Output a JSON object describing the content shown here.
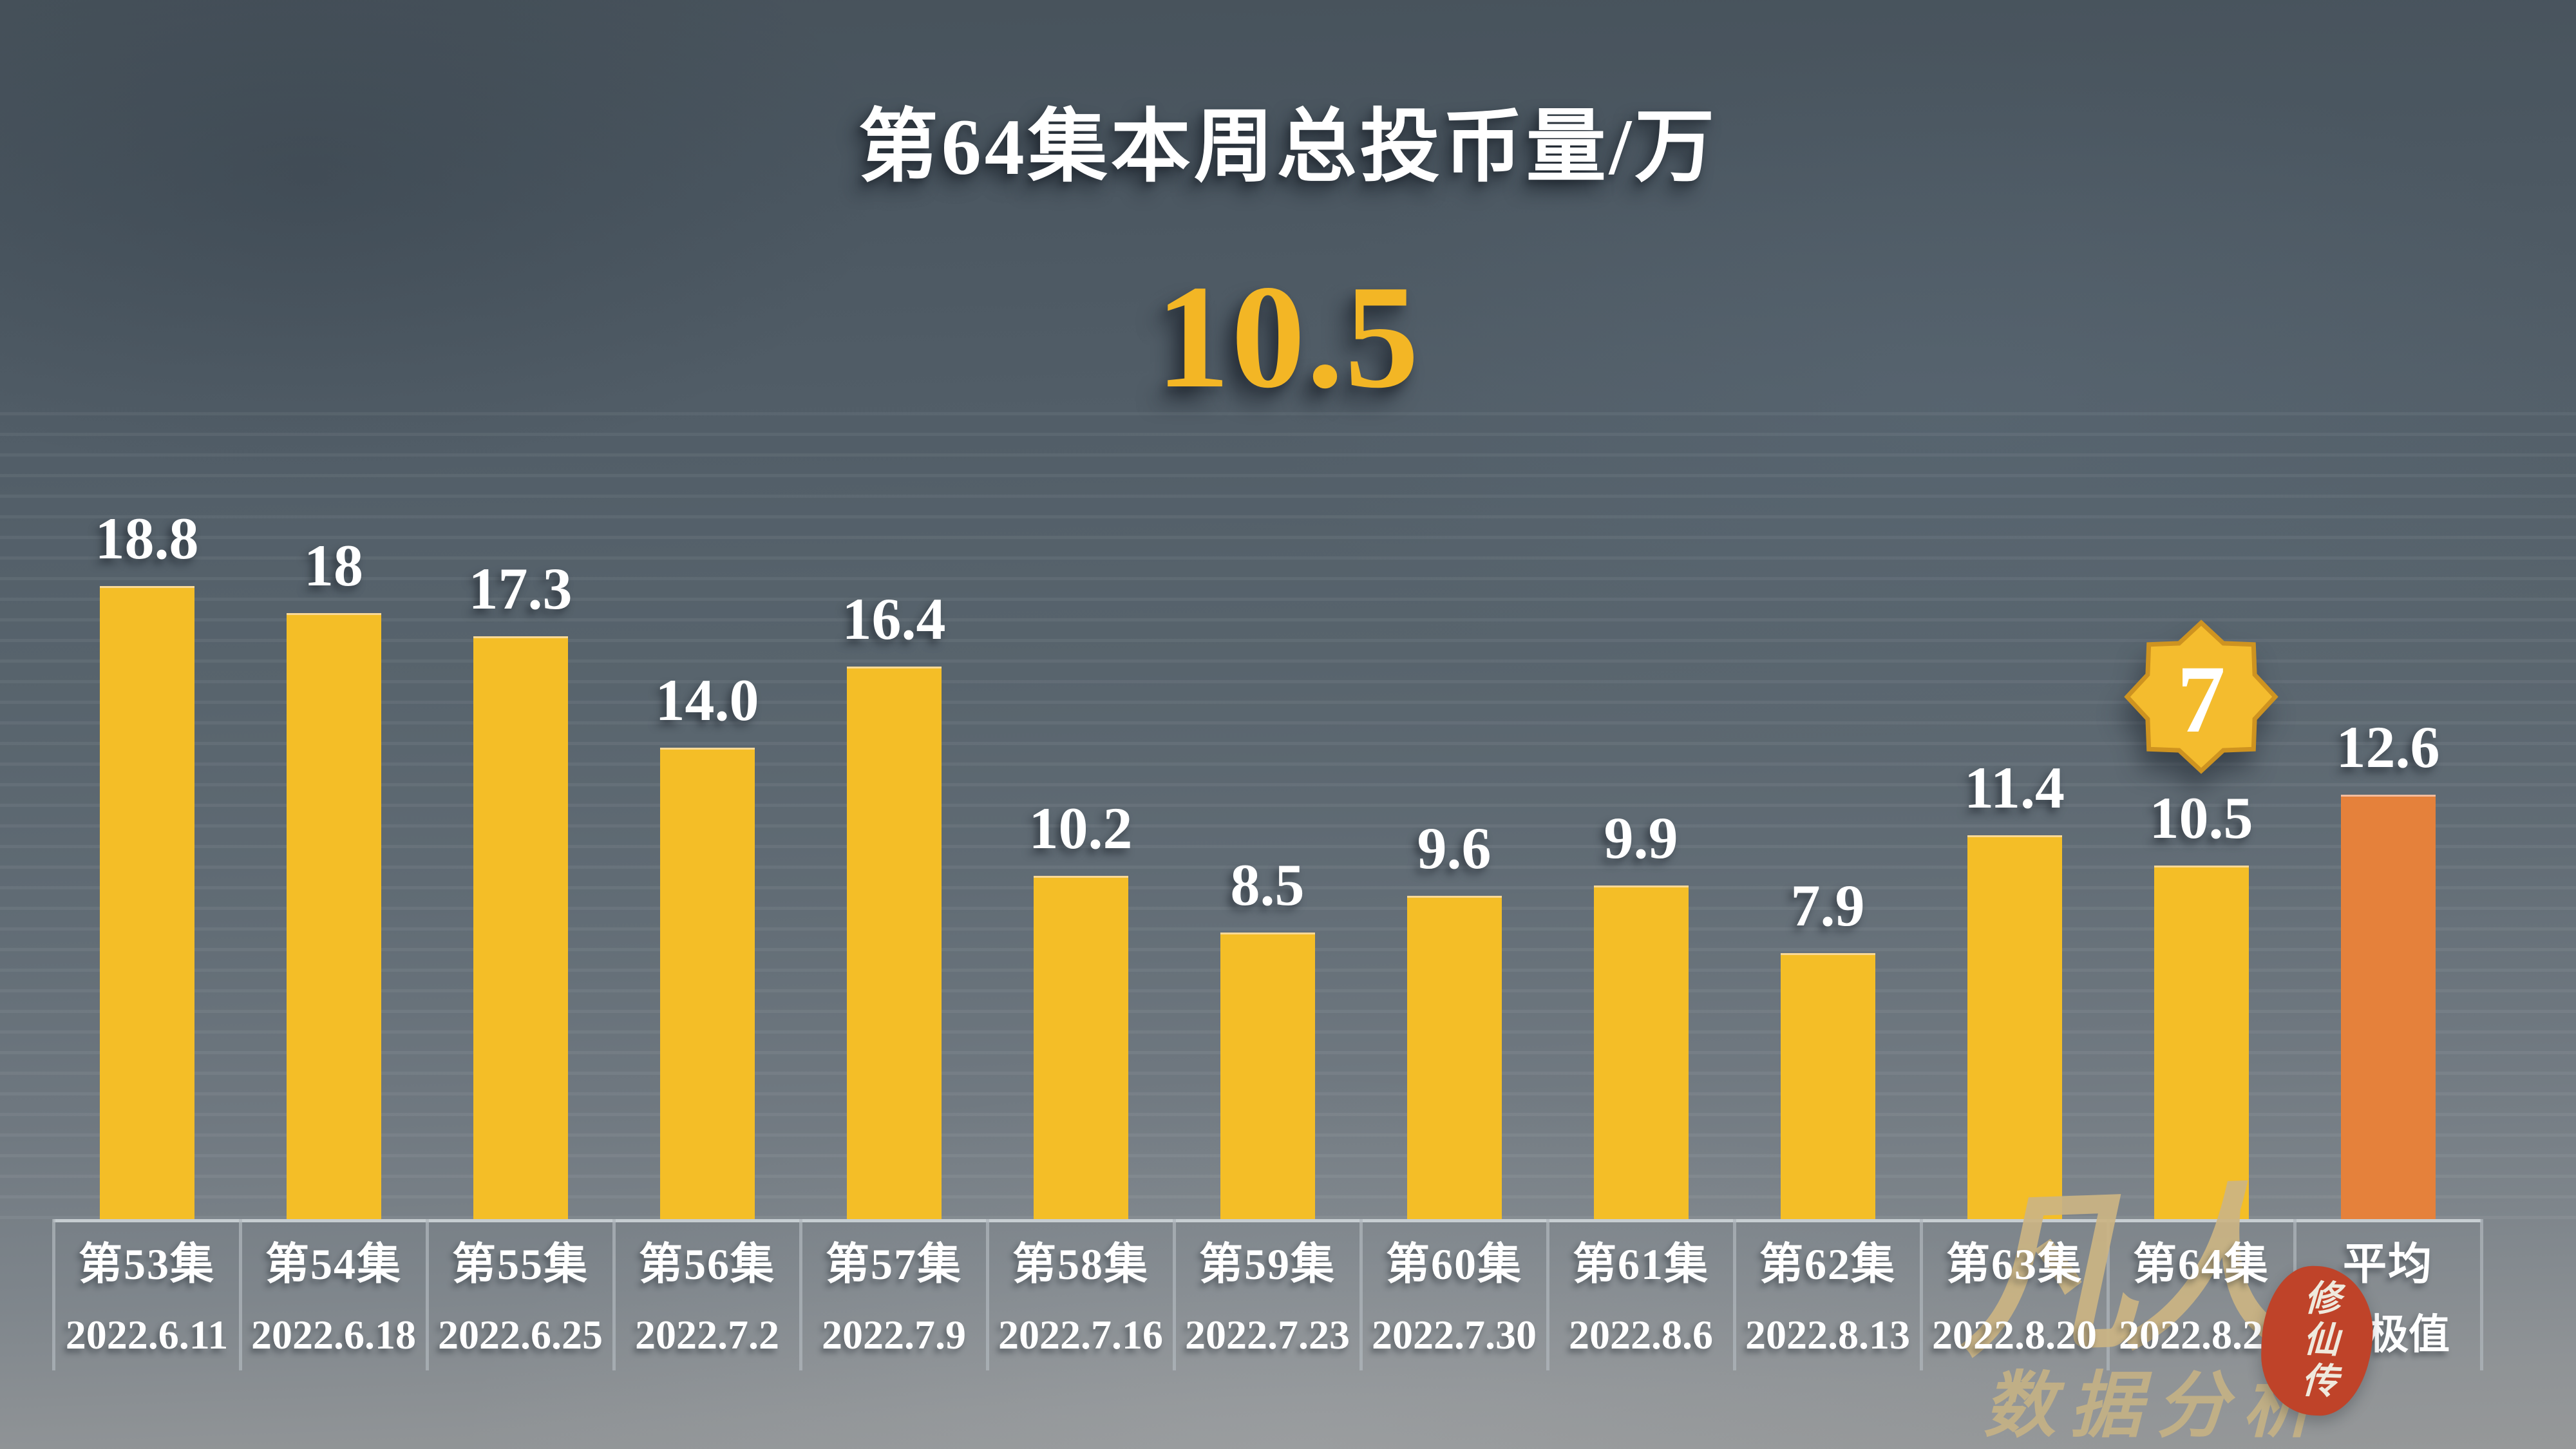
{
  "header": {
    "title": "第64集本周总投币量/万",
    "headline_value": "10.5"
  },
  "badge": {
    "text": "7",
    "attached_to": "第64集"
  },
  "watermark": {
    "main": "凡人",
    "seal": "修仙传",
    "sub": "数据分析"
  },
  "colors": {
    "bar": "#f4be27",
    "highlight_bar": "#e5813b",
    "badge_fill": "#f4bc2e",
    "badge_border": "#ce9320",
    "headline": "#f3b625",
    "watermark_gold": "rgba(203,180,131,0.92)",
    "watermark_gold_faded": "rgba(203,180,131,0.82)",
    "seal_red": "#bf4329"
  },
  "chart_data": {
    "type": "bar",
    "title": "第64集本周总投币量/万",
    "unit": "万",
    "categories": [
      "第53集",
      "第54集",
      "第55集",
      "第56集",
      "第57集",
      "第58集",
      "第59集",
      "第60集",
      "第61集",
      "第62集",
      "第63集",
      "第64集",
      "平均"
    ],
    "dates": [
      "2022.6.11",
      "2022.6.18",
      "2022.6.25",
      "2022.7.2",
      "2022.7.9",
      "2022.7.16",
      "2022.7.23",
      "2022.7.30",
      "2022.8.6",
      "2022.8.13",
      "2022.8.20",
      "2022.8.27",
      "去极值"
    ],
    "values": [
      18.8,
      18,
      17.3,
      14.0,
      16.4,
      10.2,
      8.5,
      9.6,
      9.9,
      7.9,
      11.4,
      10.5,
      12.6
    ],
    "value_labels": [
      "18.8",
      "18",
      "17.3",
      "14.0",
      "16.4",
      "10.2",
      "8.5",
      "9.6",
      "9.9",
      "7.9",
      "11.4",
      "10.5",
      "12.6"
    ],
    "highlight_index": 12,
    "badge_index": 11,
    "badge_value": "7",
    "ylim": [
      0,
      20
    ],
    "xlabel": "",
    "ylabel": "",
    "grid": "faint-horizontal",
    "legend": "none"
  }
}
